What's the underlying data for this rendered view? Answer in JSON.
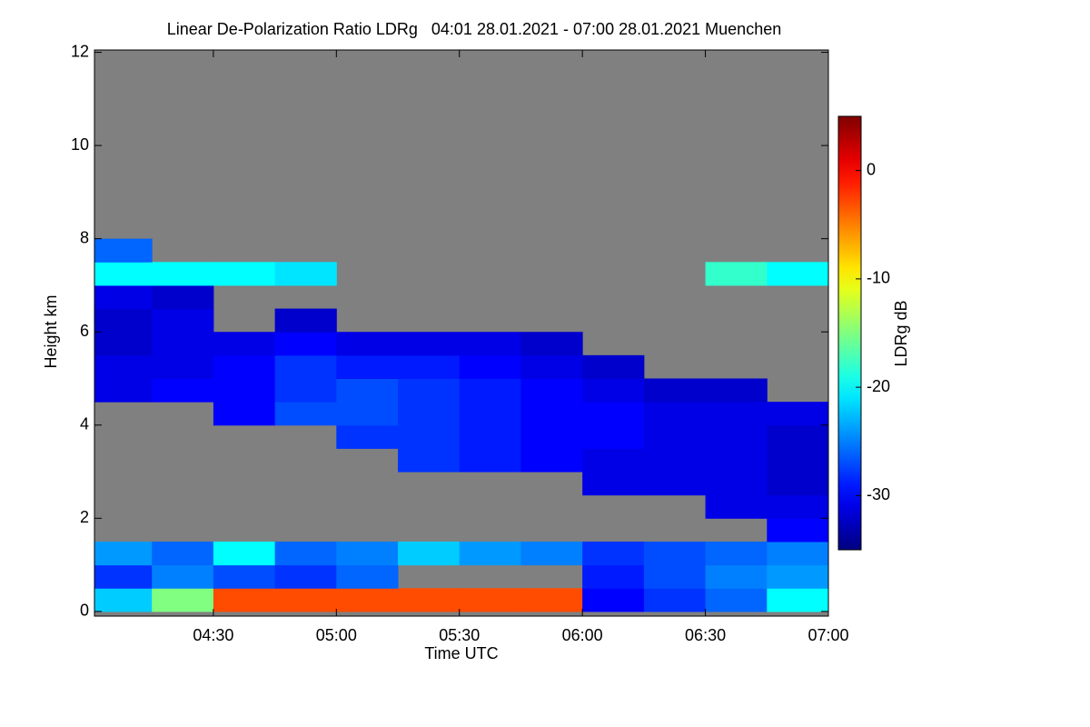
{
  "chart_data": {
    "type": "heatmap",
    "title": "Linear De-Polarization Ratio LDRg   04:01 28.01.2021 - 07:00 28.01.2021 Muenchen",
    "xlabel": "Time UTC",
    "ylabel": "Height km",
    "colorbar_label": "LDRg dB",
    "xlim": [
      4.0167,
      7.0
    ],
    "xticks": [
      {
        "value": 4.5,
        "label": "04:30"
      },
      {
        "value": 5.0,
        "label": "05:00"
      },
      {
        "value": 5.5,
        "label": "05:30"
      },
      {
        "value": 6.0,
        "label": "06:00"
      },
      {
        "value": 6.5,
        "label": "06:30"
      },
      {
        "value": 7.0,
        "label": "07:00"
      }
    ],
    "ylim": [
      -0.1,
      12.05
    ],
    "yticks": [
      0,
      2,
      4,
      6,
      8,
      10,
      12
    ],
    "clim": [
      -35,
      5
    ],
    "cticks": [
      0,
      -10,
      -20,
      -30
    ],
    "colormap": "jet",
    "background": "#808080",
    "x": [
      4.125,
      4.375,
      4.625,
      4.875,
      5.125,
      5.375,
      5.625,
      5.875,
      6.125,
      6.375,
      6.625,
      6.875
    ],
    "y": [
      0.25,
      0.75,
      1.25,
      1.75,
      2.25,
      2.75,
      3.25,
      3.75,
      4.25,
      4.75,
      5.25,
      5.75,
      6.25,
      6.75,
      7.25,
      7.75,
      8.25,
      8.75,
      9.25,
      9.75,
      10.25,
      10.75,
      11.25,
      11.75
    ],
    "z": [
      [
        -22,
        -15,
        -3,
        -3,
        -3,
        -3,
        -3,
        -3,
        -30,
        -28,
        -26,
        -20
      ],
      [
        -28,
        -25,
        -27,
        -28,
        -26,
        null,
        null,
        null,
        -29,
        -27,
        -25,
        -24
      ],
      [
        -24,
        -26,
        -20,
        -26,
        -25,
        -22,
        -24,
        -25,
        -28,
        -27,
        -26,
        -25
      ],
      [
        null,
        null,
        null,
        null,
        null,
        null,
        null,
        null,
        null,
        null,
        null,
        -30
      ],
      [
        null,
        null,
        null,
        null,
        null,
        null,
        null,
        null,
        null,
        null,
        -31,
        -31
      ],
      [
        null,
        null,
        null,
        null,
        null,
        null,
        null,
        null,
        -31,
        -31,
        -31,
        -32
      ],
      [
        null,
        null,
        null,
        null,
        null,
        -28,
        -29,
        -30,
        -31,
        -31,
        -31,
        -32
      ],
      [
        null,
        null,
        null,
        null,
        -28,
        -28,
        -29,
        -30,
        -30,
        -31,
        -31,
        -32
      ],
      [
        null,
        null,
        -30,
        -27,
        -27,
        -28,
        -29,
        -30,
        -30,
        -31,
        -31,
        -31
      ],
      [
        -31,
        -30,
        -30,
        -28,
        -27,
        -28,
        -29,
        -30,
        -31,
        -32,
        -32,
        null
      ],
      [
        -31,
        -31,
        -30,
        -28,
        -29,
        -29,
        -30,
        -31,
        -32,
        null,
        null,
        null
      ],
      [
        -32,
        -31,
        -31,
        -30,
        -31,
        -31,
        -31,
        -32,
        null,
        null,
        null,
        null
      ],
      [
        -32,
        -31,
        null,
        -32,
        null,
        null,
        null,
        null,
        null,
        null,
        null,
        null
      ],
      [
        -31,
        -32,
        null,
        null,
        null,
        null,
        null,
        null,
        null,
        null,
        null,
        null
      ],
      [
        -20,
        -20,
        -20,
        -21,
        null,
        null,
        null,
        null,
        null,
        null,
        -18,
        -20
      ],
      [
        -26,
        null,
        null,
        null,
        null,
        null,
        null,
        null,
        null,
        null,
        null,
        null
      ],
      [
        null,
        null,
        null,
        null,
        null,
        null,
        null,
        null,
        null,
        null,
        null,
        null
      ],
      [
        null,
        null,
        null,
        null,
        null,
        null,
        null,
        null,
        null,
        null,
        null,
        null
      ],
      [
        null,
        null,
        null,
        null,
        null,
        null,
        null,
        null,
        null,
        null,
        null,
        null
      ],
      [
        null,
        null,
        null,
        null,
        null,
        null,
        null,
        null,
        null,
        null,
        null,
        null
      ],
      [
        null,
        null,
        null,
        null,
        null,
        null,
        null,
        null,
        null,
        null,
        null,
        null
      ],
      [
        null,
        null,
        null,
        null,
        null,
        null,
        null,
        null,
        null,
        null,
        null,
        null
      ],
      [
        null,
        null,
        null,
        null,
        null,
        null,
        null,
        null,
        null,
        null,
        null,
        null
      ],
      [
        null,
        null,
        null,
        null,
        null,
        null,
        null,
        null,
        null,
        null,
        null,
        null
      ]
    ]
  }
}
